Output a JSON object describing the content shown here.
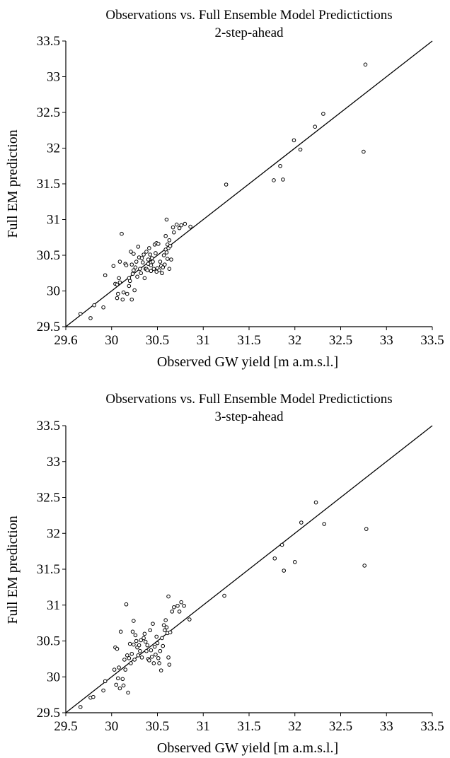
{
  "chart_data": [
    {
      "type": "scatter",
      "title": "Observations vs. Full Ensemble Model Predictictions",
      "subtitle": "2-step-ahead",
      "xlabel": "Observed GW yield [m a.m.s.l.]",
      "ylabel": "Full EM prediction",
      "xlim": [
        29.5,
        33.5
      ],
      "ylim": [
        29.5,
        33.5
      ],
      "xticks": [
        "29.6",
        "30",
        "30.5",
        "31",
        "31.5",
        "32",
        "32.5",
        "33",
        "33.5"
      ],
      "yticks": [
        "29.5",
        "30",
        "30.5",
        "31",
        "31.5",
        "32",
        "32.5",
        "33",
        "33.5"
      ],
      "reference_line": {
        "label": "",
        "from": [
          29.5,
          29.5
        ],
        "to": [
          33.5,
          33.5
        ]
      },
      "points": [
        [
          29.66,
          29.68
        ],
        [
          29.77,
          29.62
        ],
        [
          29.81,
          29.8
        ],
        [
          29.91,
          29.77
        ],
        [
          29.93,
          30.22
        ],
        [
          30.02,
          30.35
        ],
        [
          30.04,
          30.1
        ],
        [
          30.06,
          30.09
        ],
        [
          30.06,
          29.9
        ],
        [
          30.07,
          29.96
        ],
        [
          30.08,
          30.18
        ],
        [
          30.09,
          30.12
        ],
        [
          30.09,
          30.41
        ],
        [
          30.11,
          30.8
        ],
        [
          30.12,
          29.88
        ],
        [
          30.13,
          29.98
        ],
        [
          30.15,
          30.38
        ],
        [
          30.16,
          30.36
        ],
        [
          30.17,
          29.96
        ],
        [
          30.19,
          30.07
        ],
        [
          30.19,
          30.18
        ],
        [
          30.2,
          30.14
        ],
        [
          30.21,
          30.55
        ],
        [
          30.22,
          30.37
        ],
        [
          30.22,
          29.88
        ],
        [
          30.23,
          30.24
        ],
        [
          30.24,
          30.29
        ],
        [
          30.24,
          30.52
        ],
        [
          30.25,
          30.01
        ],
        [
          30.26,
          30.33
        ],
        [
          30.27,
          30.41
        ],
        [
          30.28,
          30.2
        ],
        [
          30.29,
          30.62
        ],
        [
          30.3,
          30.47
        ],
        [
          30.31,
          30.31
        ],
        [
          30.32,
          30.25
        ],
        [
          30.33,
          30.46
        ],
        [
          30.34,
          30.4
        ],
        [
          30.35,
          30.51
        ],
        [
          30.36,
          30.18
        ],
        [
          30.37,
          30.31
        ],
        [
          30.38,
          30.55
        ],
        [
          30.38,
          30.31
        ],
        [
          30.39,
          30.29
        ],
        [
          30.4,
          30.44
        ],
        [
          30.4,
          30.38
        ],
        [
          30.41,
          30.6
        ],
        [
          30.42,
          30.51
        ],
        [
          30.43,
          30.36
        ],
        [
          30.43,
          30.28
        ],
        [
          30.44,
          30.46
        ],
        [
          30.45,
          30.41
        ],
        [
          30.46,
          30.31
        ],
        [
          30.47,
          30.65
        ],
        [
          30.48,
          30.53
        ],
        [
          30.49,
          30.27
        ],
        [
          30.49,
          30.67
        ],
        [
          30.5,
          30.32
        ],
        [
          30.51,
          30.66
        ],
        [
          30.52,
          30.29
        ],
        [
          30.53,
          30.41
        ],
        [
          30.54,
          30.35
        ],
        [
          30.55,
          30.25
        ],
        [
          30.56,
          30.33
        ],
        [
          30.57,
          30.5
        ],
        [
          30.58,
          30.37
        ],
        [
          30.59,
          30.58
        ],
        [
          30.59,
          30.77
        ],
        [
          30.6,
          31.0
        ],
        [
          30.6,
          30.54
        ],
        [
          30.61,
          30.45
        ],
        [
          30.61,
          30.65
        ],
        [
          30.62,
          30.6
        ],
        [
          30.63,
          30.71
        ],
        [
          30.63,
          30.31
        ],
        [
          30.64,
          30.63
        ],
        [
          30.65,
          30.44
        ],
        [
          30.67,
          30.89
        ],
        [
          30.68,
          30.82
        ],
        [
          30.71,
          30.93
        ],
        [
          30.74,
          30.88
        ],
        [
          30.76,
          30.92
        ],
        [
          30.8,
          30.94
        ],
        [
          30.86,
          30.9
        ],
        [
          31.25,
          31.49
        ],
        [
          31.77,
          31.55
        ],
        [
          31.84,
          31.75
        ],
        [
          31.87,
          31.56
        ],
        [
          31.99,
          32.11
        ],
        [
          32.06,
          31.98
        ],
        [
          32.22,
          32.3
        ],
        [
          32.31,
          32.48
        ],
        [
          32.75,
          31.95
        ],
        [
          32.77,
          33.17
        ]
      ]
    },
    {
      "type": "scatter",
      "title": "Observations vs. Full Ensemble Model Predictictions",
      "subtitle": "3-step-ahead",
      "xlabel": "Observed GW yield [m a.m.s.l.]",
      "ylabel": "Full EM prediction",
      "xlim": [
        29.5,
        33.5
      ],
      "ylim": [
        29.5,
        33.5
      ],
      "xticks": [
        "29.5",
        "30",
        "30.5",
        "31",
        "31.5",
        "32",
        "32.5",
        "33",
        "33.5"
      ],
      "yticks": [
        "29.5",
        "30",
        "30.5",
        "31",
        "31.5",
        "32",
        "32.5",
        "33",
        "33.5"
      ],
      "reference_line": {
        "label": "",
        "from": [
          29.5,
          29.5
        ],
        "to": [
          33.5,
          33.5
        ]
      },
      "points": [
        [
          29.66,
          29.58
        ],
        [
          29.77,
          29.71
        ],
        [
          29.8,
          29.72
        ],
        [
          29.91,
          29.81
        ],
        [
          29.93,
          29.94
        ],
        [
          30.03,
          30.1
        ],
        [
          30.04,
          30.41
        ],
        [
          30.05,
          29.89
        ],
        [
          30.06,
          30.39
        ],
        [
          30.07,
          29.98
        ],
        [
          30.08,
          30.13
        ],
        [
          30.09,
          29.84
        ],
        [
          30.1,
          30.63
        ],
        [
          30.12,
          29.97
        ],
        [
          30.13,
          29.88
        ],
        [
          30.14,
          30.24
        ],
        [
          30.15,
          30.1
        ],
        [
          30.16,
          31.01
        ],
        [
          30.17,
          30.3
        ],
        [
          30.18,
          29.78
        ],
        [
          30.19,
          30.26
        ],
        [
          30.2,
          30.46
        ],
        [
          30.21,
          30.19
        ],
        [
          30.22,
          30.32
        ],
        [
          30.23,
          30.63
        ],
        [
          30.24,
          30.78
        ],
        [
          30.24,
          30.45
        ],
        [
          30.25,
          30.24
        ],
        [
          30.26,
          30.58
        ],
        [
          30.27,
          30.5
        ],
        [
          30.28,
          30.41
        ],
        [
          30.29,
          30.3
        ],
        [
          30.3,
          30.44
        ],
        [
          30.31,
          30.36
        ],
        [
          30.32,
          30.51
        ],
        [
          30.33,
          30.27
        ],
        [
          30.35,
          30.54
        ],
        [
          30.36,
          30.6
        ],
        [
          30.37,
          30.49
        ],
        [
          30.38,
          30.36
        ],
        [
          30.39,
          30.44
        ],
        [
          30.4,
          30.25
        ],
        [
          30.41,
          30.23
        ],
        [
          30.42,
          30.65
        ],
        [
          30.43,
          30.37
        ],
        [
          30.44,
          30.28
        ],
        [
          30.45,
          30.74
        ],
        [
          30.46,
          30.19
        ],
        [
          30.47,
          30.42
        ],
        [
          30.48,
          30.31
        ],
        [
          30.49,
          30.56
        ],
        [
          30.5,
          30.47
        ],
        [
          30.51,
          30.26
        ],
        [
          30.52,
          30.19
        ],
        [
          30.53,
          30.36
        ],
        [
          30.54,
          30.09
        ],
        [
          30.55,
          30.54
        ],
        [
          30.56,
          30.43
        ],
        [
          30.57,
          30.72
        ],
        [
          30.58,
          30.65
        ],
        [
          30.59,
          30.79
        ],
        [
          30.6,
          30.69
        ],
        [
          30.61,
          30.61
        ],
        [
          30.62,
          30.27
        ],
        [
          30.62,
          31.12
        ],
        [
          30.63,
          30.17
        ],
        [
          30.64,
          30.62
        ],
        [
          30.66,
          30.91
        ],
        [
          30.68,
          30.97
        ],
        [
          30.72,
          30.99
        ],
        [
          30.74,
          30.91
        ],
        [
          30.76,
          31.04
        ],
        [
          30.79,
          30.99
        ],
        [
          30.85,
          30.8
        ],
        [
          31.23,
          31.13
        ],
        [
          31.78,
          31.65
        ],
        [
          31.86,
          31.84
        ],
        [
          31.88,
          31.48
        ],
        [
          32.0,
          31.6
        ],
        [
          32.07,
          32.15
        ],
        [
          32.23,
          32.43
        ],
        [
          32.32,
          32.13
        ],
        [
          32.76,
          31.55
        ],
        [
          32.78,
          32.06
        ]
      ]
    }
  ]
}
